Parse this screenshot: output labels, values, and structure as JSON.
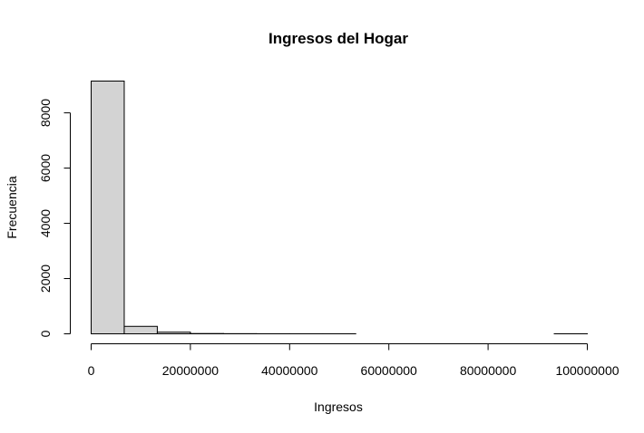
{
  "chart_data": {
    "type": "bar",
    "title": "Ingresos del Hogar",
    "xlabel": "Ingresos",
    "ylabel": "Frecuencia",
    "xlim": [
      0,
      100000000
    ],
    "ylim": [
      0,
      9150
    ],
    "bin_width": 6666667,
    "bins": [
      {
        "x0": 0,
        "x1": 6666667,
        "count": 9150
      },
      {
        "x0": 6666667,
        "x1": 13333333,
        "count": 270
      },
      {
        "x0": 13333333,
        "x1": 20000000,
        "count": 60
      },
      {
        "x0": 20000000,
        "x1": 26666667,
        "count": 10
      },
      {
        "x0": 26666667,
        "x1": 33333333,
        "count": 5
      },
      {
        "x0": 33333333,
        "x1": 40000000,
        "count": 2
      },
      {
        "x0": 40000000,
        "x1": 46666667,
        "count": 1
      },
      {
        "x0": 46666667,
        "x1": 53333333,
        "count": 1
      },
      {
        "x0": 53333333,
        "x1": 60000000,
        "count": 0
      },
      {
        "x0": 60000000,
        "x1": 66666667,
        "count": 0
      },
      {
        "x0": 66666667,
        "x1": 73333333,
        "count": 0
      },
      {
        "x0": 73333333,
        "x1": 80000000,
        "count": 0
      },
      {
        "x0": 80000000,
        "x1": 86666667,
        "count": 0
      },
      {
        "x0": 86666667,
        "x1": 93333333,
        "count": 0
      },
      {
        "x0": 93333333,
        "x1": 100000000,
        "count": 1
      }
    ],
    "x_ticks": [
      0,
      20000000,
      40000000,
      60000000,
      80000000,
      100000000
    ],
    "x_tick_labels": [
      "0",
      "20000000",
      "40000000",
      "60000000",
      "80000000",
      "100000000"
    ],
    "y_ticks": [
      0,
      2000,
      4000,
      6000,
      8000
    ],
    "y_tick_labels": [
      "0",
      "2000",
      "4000",
      "6000",
      "8000"
    ],
    "bar_fill": "#d3d3d3",
    "bar_stroke": "#000000",
    "grid": false,
    "legend": "none"
  }
}
